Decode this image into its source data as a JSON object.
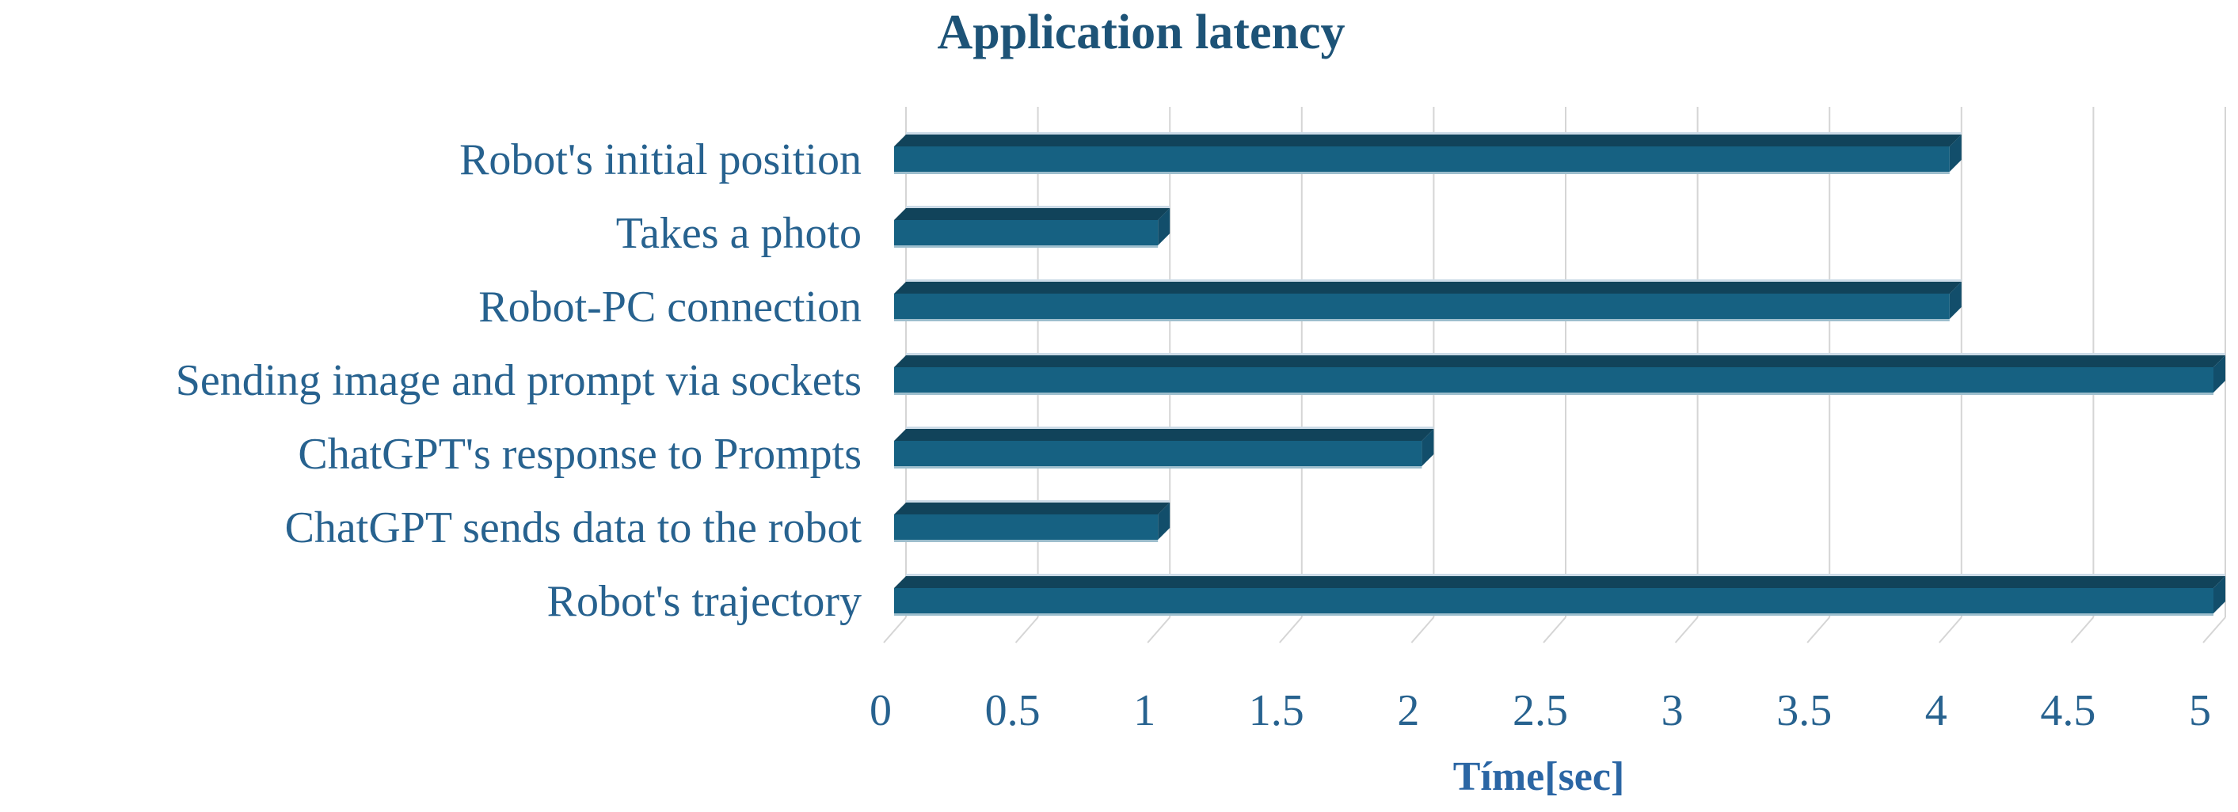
{
  "chart_data": {
    "type": "bar",
    "orientation": "horizontal",
    "style": "3d-bevel",
    "title": "Application latency",
    "xlabel": "Tíme[sec]",
    "ylabel": "",
    "categories": [
      "Robot's initial position",
      "Takes a photo",
      "Robot-PC connection",
      "Sending image and prompt via sockets",
      "ChatGPT's response to Prompts",
      "ChatGPT sends data to the robot",
      "Robot's trajectory"
    ],
    "values": [
      4,
      1,
      4,
      5,
      2,
      1,
      5
    ],
    "value_unit": "sec",
    "xlim": [
      0,
      5
    ],
    "x_ticks": [
      0,
      0.5,
      1,
      1.5,
      2,
      2.5,
      3,
      3.5,
      4,
      4.5,
      5
    ],
    "x_tick_labels": [
      "0",
      "0.5",
      "1",
      "1.5",
      "2",
      "2.5",
      "3",
      "3.5",
      "4",
      "4.5",
      "5"
    ],
    "grid": true,
    "legend": false,
    "colors": {
      "bar_face": "#166182",
      "bar_top": "#11435a",
      "bar_end": "#124e6b",
      "bar_outline_light": "#ccdbe7",
      "bar_outline_bottom": "#9dbecd",
      "gridline": "#d5d5d5",
      "tick_text": "#27628f",
      "category_text": "#27628f",
      "title_text": "#1d5377",
      "axis_title_text": "#2b66a4",
      "background": "#ffffff"
    }
  }
}
